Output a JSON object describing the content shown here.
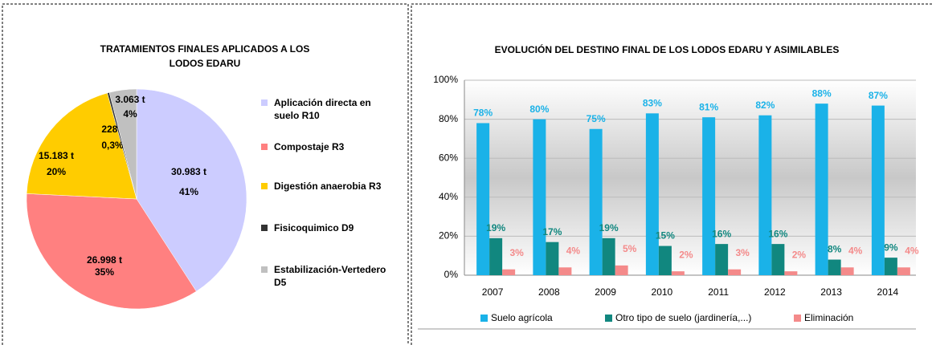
{
  "chart_data": [
    {
      "type": "pie",
      "title": "TRATAMIENTOS FINALES APLICADOS  A LOS LODOS EDARU",
      "categories": [
        "Aplicación directa en suelo R10",
        "Compostaje R3",
        "Digestión anaerobia R3",
        "Fisicoquimico D9",
        "Estabilización-Vertedero D5"
      ],
      "values": [
        41,
        35,
        20,
        0.3,
        4
      ],
      "value_labels": [
        "41%",
        "35%",
        "20%",
        "0,3%",
        "4%"
      ],
      "tonnage_labels": [
        "30.983 t",
        "26.998 t",
        "15.183 t",
        "228 t",
        "3.063 t"
      ],
      "colors": [
        "#ccccff",
        "#ff8080",
        "#ffcc00",
        "#333333",
        "#c0c0c0"
      ]
    },
    {
      "type": "bar",
      "title": "EVOLUCIÓN DEL DESTINO FINAL DE LOS LODOS EDARU Y ASIMILABLES",
      "categories": [
        "2007",
        "2008",
        "2009",
        "2010",
        "2011",
        "2012",
        "2013",
        "2014"
      ],
      "series": [
        {
          "name": "Suelo agrícola",
          "color": "#1ab2e8",
          "values": [
            78,
            80,
            75,
            83,
            81,
            82,
            88,
            87
          ],
          "value_labels": [
            "78%",
            "80%",
            "75%",
            "83%",
            "81%",
            "82%",
            "88%",
            "87%"
          ]
        },
        {
          "name": "Otro tipo de suelo (jardinería,...)",
          "color": "#11877f",
          "values": [
            19,
            17,
            19,
            15,
            16,
            16,
            8,
            9
          ],
          "value_labels": [
            "19%",
            "17%",
            "19%",
            "15%",
            "16%",
            "16%",
            "8%",
            "9%"
          ]
        },
        {
          "name": "Eliminación",
          "color": "#f48a8a",
          "values": [
            3,
            4,
            5,
            2,
            3,
            2,
            4,
            4
          ],
          "value_labels": [
            "3%",
            "4%",
            "5%",
            "2%",
            "3%",
            "2%",
            "4%",
            "4%"
          ]
        }
      ],
      "label_colors": [
        "#1ab2e8",
        "#11877f",
        "#f48a8a"
      ],
      "ylim": [
        0,
        100
      ],
      "yticks": [
        {
          "value": 0,
          "label": "0%"
        },
        {
          "value": 20,
          "label": "20%"
        },
        {
          "value": 40,
          "label": "40%"
        },
        {
          "value": 60,
          "label": "60%"
        },
        {
          "value": 80,
          "label": "80%"
        },
        {
          "value": 100,
          "label": "100%"
        }
      ],
      "grid": true
    }
  ]
}
